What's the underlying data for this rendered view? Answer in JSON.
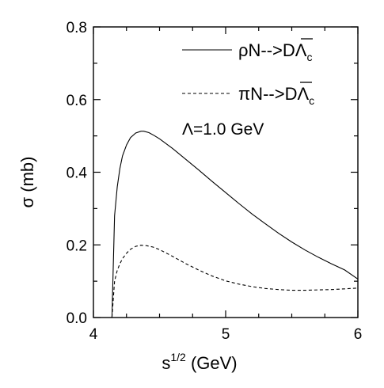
{
  "chart_data": {
    "type": "line",
    "title": "",
    "xlabel": "s^{1/2} (GeV)",
    "xlabel_base": "s",
    "xlabel_sup": "1/2",
    "xlabel_rest": " (GeV)",
    "ylabel": "σ (mb)",
    "xlim": [
      4,
      6
    ],
    "ylim": [
      0.0,
      0.8
    ],
    "x_ticks": [
      4,
      5,
      6
    ],
    "x_tick_labels": [
      "4",
      "5",
      "6"
    ],
    "y_ticks": [
      0.0,
      0.2,
      0.4,
      0.6,
      0.8
    ],
    "y_tick_labels": [
      "0.0",
      "0.2",
      "0.4",
      "0.6",
      "0.8"
    ],
    "grid": false,
    "legend_position": "top-right",
    "annotation": "Λ=1.0 GeV",
    "series": [
      {
        "name": "ρN-->D̄Λc",
        "legend_main": "ρN-->",
        "legend_bar_letter": "D",
        "legend_after": "Λ",
        "legend_sub": "c",
        "line_style": "solid",
        "color": "#000000",
        "x": [
          4.14,
          4.16,
          4.18,
          4.2,
          4.22,
          4.25,
          4.28,
          4.32,
          4.36,
          4.38,
          4.42,
          4.46,
          4.5,
          4.6,
          4.7,
          4.8,
          4.9,
          5.0,
          5.1,
          5.2,
          5.3,
          5.4,
          5.5,
          5.6,
          5.7,
          5.8,
          5.9,
          6.0
        ],
        "y": [
          0.0,
          0.28,
          0.36,
          0.41,
          0.445,
          0.475,
          0.495,
          0.508,
          0.513,
          0.513,
          0.509,
          0.501,
          0.492,
          0.465,
          0.435,
          0.405,
          0.374,
          0.344,
          0.314,
          0.285,
          0.258,
          0.232,
          0.208,
          0.186,
          0.166,
          0.148,
          0.131,
          0.106
        ]
      },
      {
        "name": "πN-->D̄Λc",
        "legend_main": "πN-->",
        "legend_bar_letter": "D",
        "legend_after": "Λ",
        "legend_sub": "c",
        "line_style": "dashed",
        "color": "#000000",
        "x": [
          4.14,
          4.16,
          4.18,
          4.2,
          4.22,
          4.25,
          4.28,
          4.32,
          4.36,
          4.4,
          4.45,
          4.5,
          4.6,
          4.7,
          4.8,
          4.9,
          5.0,
          5.1,
          5.2,
          5.3,
          5.4,
          5.5,
          5.6,
          5.7,
          5.8,
          5.9,
          6.0
        ],
        "y": [
          0.0,
          0.1,
          0.13,
          0.148,
          0.162,
          0.177,
          0.188,
          0.196,
          0.199,
          0.198,
          0.194,
          0.187,
          0.168,
          0.148,
          0.13,
          0.114,
          0.101,
          0.092,
          0.085,
          0.08,
          0.077,
          0.075,
          0.075,
          0.076,
          0.077,
          0.079,
          0.081
        ]
      }
    ]
  }
}
